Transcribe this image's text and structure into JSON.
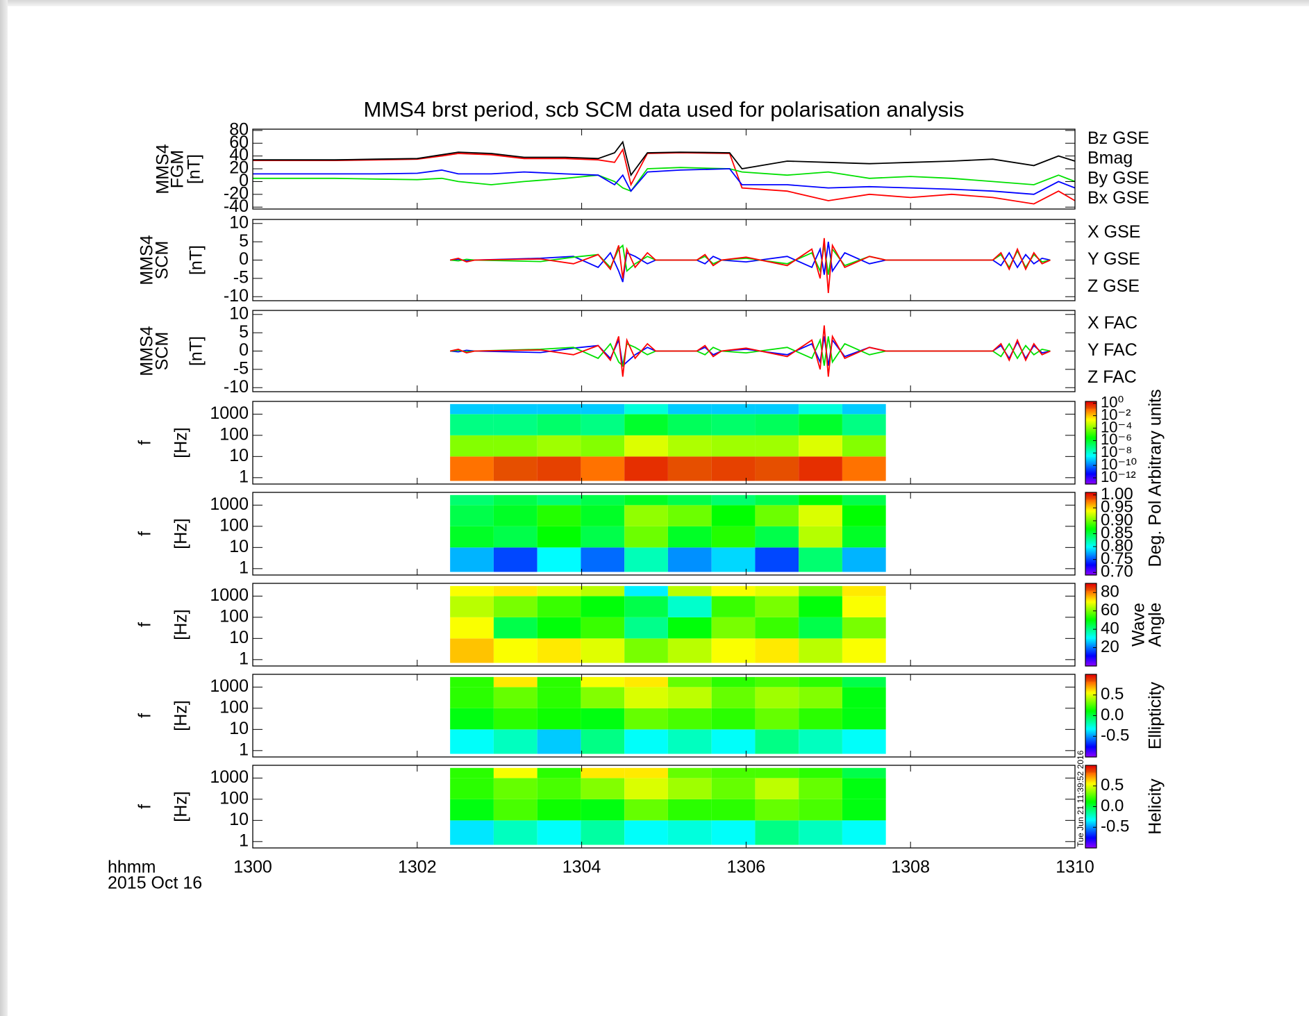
{
  "title": "MMS4 brst period, scb SCM data used for polarisation analysis",
  "x_label": "hhmm",
  "date": "2015 Oct 16",
  "timestamp": "Tue Jun 21 11:39:52 2016",
  "xlim": [
    1300,
    1310
  ],
  "xticks": [
    1300,
    1302,
    1304,
    1306,
    1308,
    1310
  ],
  "chart_data": [
    {
      "type": "line",
      "y_label": [
        "MMS4",
        "FGM",
        "[nT]"
      ],
      "ylim": [
        -43,
        82
      ],
      "yticks": [
        -40,
        -20,
        0,
        20,
        40,
        60,
        80
      ],
      "x": [
        1300,
        1300.5,
        1301,
        1301.5,
        1302,
        1302.3,
        1302.5,
        1302.9,
        1303.3,
        1303.8,
        1304.2,
        1304.4,
        1304.5,
        1304.6,
        1304.8,
        1305.2,
        1305.8,
        1305.95,
        1306.5,
        1307,
        1307.5,
        1308,
        1308.5,
        1309,
        1309.5,
        1309.8,
        1310
      ],
      "series": [
        {
          "name": "Bz GSE",
          "color": "#ff0000",
          "values": [
            33,
            33,
            33,
            34,
            35,
            40,
            44,
            42,
            36,
            36,
            34,
            30,
            50,
            -5,
            44,
            45,
            44,
            -10,
            -15,
            -30,
            -20,
            -25,
            -20,
            -25,
            -35,
            -15,
            -30
          ]
        },
        {
          "name": "Bmag",
          "color": "#000000",
          "values": [
            34,
            34,
            34,
            35,
            36,
            42,
            46,
            44,
            38,
            38,
            36,
            45,
            62,
            10,
            45,
            46,
            45,
            20,
            32,
            30,
            28,
            30,
            32,
            35,
            25,
            40,
            32
          ]
        },
        {
          "name": "By GSE",
          "color": "#00e000",
          "values": [
            5,
            5,
            5,
            4,
            3,
            5,
            0,
            -5,
            0,
            5,
            10,
            0,
            -10,
            -15,
            20,
            22,
            20,
            15,
            10,
            15,
            5,
            8,
            5,
            0,
            -5,
            10,
            0
          ]
        },
        {
          "name": "Bx GSE",
          "color": "#0000ff",
          "values": [
            12,
            12,
            12,
            12,
            13,
            18,
            12,
            12,
            15,
            12,
            10,
            -5,
            10,
            -15,
            15,
            18,
            20,
            -5,
            -5,
            -10,
            -8,
            -10,
            -12,
            -15,
            -20,
            0,
            -10
          ]
        }
      ]
    },
    {
      "type": "line",
      "y_label": [
        "MMS4",
        "SCM",
        "[nT]"
      ],
      "ylim": [
        -11.1,
        11.1
      ],
      "yticks": [
        -10,
        -5,
        0,
        5,
        10
      ],
      "x": [
        1302.4,
        1302.5,
        1302.6,
        1302.7,
        1303.5,
        1303.9,
        1304.2,
        1304.35,
        1304.45,
        1304.5,
        1304.55,
        1304.65,
        1304.8,
        1304.9,
        1305.4,
        1305.5,
        1305.6,
        1305.7,
        1306,
        1306.5,
        1306.8,
        1306.9,
        1306.95,
        1307,
        1307.05,
        1307.2,
        1307.5,
        1307.7,
        1308,
        1308.5,
        1309,
        1309.1,
        1309.2,
        1309.3,
        1309.4,
        1309.5,
        1309.6,
        1309.7
      ],
      "series": [
        {
          "name": "X GSE",
          "color": "#0000ff",
          "values": [
            0,
            0.2,
            -0.2,
            0,
            0.5,
            1,
            -2,
            2,
            -3,
            -6,
            2,
            1,
            -1,
            0,
            0,
            -1,
            1,
            0,
            -0.5,
            1,
            -2,
            3,
            -4,
            5,
            -3,
            2,
            -1,
            0,
            0,
            0,
            0,
            -1.5,
            2,
            -2,
            1.5,
            -1,
            0.5,
            0
          ]
        },
        {
          "name": "Y GSE",
          "color": "#00e000",
          "values": [
            0,
            -0.2,
            0.2,
            0,
            -0.4,
            0.8,
            1.5,
            -2,
            3,
            4,
            -3,
            -1,
            1,
            0,
            0,
            1,
            -1,
            0,
            0.5,
            -1,
            2,
            -3,
            4,
            -4,
            3,
            -1.5,
            1,
            0,
            0,
            0,
            0,
            1.5,
            -2,
            2.5,
            -2,
            1.5,
            -0.5,
            0
          ]
        },
        {
          "name": "Z GSE",
          "color": "#ff0000",
          "values": [
            0,
            0.5,
            -0.5,
            0,
            0.3,
            -1,
            1.5,
            -2.5,
            4,
            -5,
            3,
            -2,
            2,
            0,
            0,
            1.5,
            -1.5,
            0,
            0.8,
            -1.5,
            3,
            -5,
            6,
            -9,
            4,
            -2,
            1,
            0,
            0,
            0,
            0,
            2,
            -2.5,
            3,
            -2.5,
            2,
            -1,
            0
          ]
        }
      ]
    },
    {
      "type": "line",
      "y_label": [
        "MMS4",
        "SCM",
        "[nT]"
      ],
      "ylim": [
        -11.1,
        11.1
      ],
      "yticks": [
        -10,
        -5,
        0,
        5,
        10
      ],
      "x": [
        1302.4,
        1302.5,
        1302.6,
        1302.7,
        1303.5,
        1303.9,
        1304.2,
        1304.35,
        1304.45,
        1304.5,
        1304.55,
        1304.65,
        1304.8,
        1304.9,
        1305.4,
        1305.5,
        1305.6,
        1305.7,
        1306,
        1306.5,
        1306.8,
        1306.9,
        1306.95,
        1307,
        1307.05,
        1307.2,
        1307.5,
        1307.7,
        1308,
        1308.5,
        1309,
        1309.1,
        1309.2,
        1309.3,
        1309.4,
        1309.5,
        1309.6,
        1309.7
      ],
      "series": [
        {
          "name": "X FAC",
          "color": "#0000ff",
          "values": [
            0,
            -0.2,
            0.2,
            0,
            -0.4,
            0.8,
            1.5,
            -2,
            3,
            -4,
            -3,
            -1,
            1,
            0,
            0,
            1,
            -1,
            0,
            0.5,
            -1,
            2,
            -3,
            4,
            -4,
            3,
            -1.5,
            1,
            0,
            0,
            0,
            0,
            1.5,
            -2,
            2.5,
            -2,
            1.5,
            -0.5,
            0
          ]
        },
        {
          "name": "Y FAC",
          "color": "#00e000",
          "values": [
            0,
            0.2,
            -0.2,
            0,
            0.5,
            1,
            -2,
            2,
            -3,
            -4,
            2,
            1,
            -1,
            0,
            0,
            -1,
            1,
            0,
            -0.5,
            1,
            -2,
            3,
            -4,
            4,
            -3,
            2,
            -1,
            0,
            0,
            0,
            0,
            -1.5,
            2,
            -2,
            1.5,
            -1,
            0.5,
            0
          ]
        },
        {
          "name": "Z FAC",
          "color": "#ff0000",
          "values": [
            0,
            0.5,
            -0.5,
            0,
            0.3,
            -1,
            1.5,
            -2.5,
            4,
            -7,
            3,
            -2,
            2,
            0,
            0,
            1.5,
            -1.5,
            0,
            0.8,
            -1.5,
            3,
            -5,
            7,
            -7,
            4,
            -2,
            1,
            0,
            0,
            0,
            0,
            2,
            -2.5,
            3,
            -2.5,
            2,
            -1,
            0
          ]
        }
      ]
    },
    {
      "type": "heatmap",
      "y_label": [
        "f",
        "[Hz]"
      ],
      "log_y": true,
      "ylim": [
        0.5,
        4000
      ],
      "yticks": [
        1,
        10,
        100,
        1000
      ],
      "x_edges": [
        1302.4,
        1302.93,
        1303.46,
        1303.99,
        1304.52,
        1305.05,
        1305.58,
        1306.11,
        1306.64,
        1307.17,
        1307.7
      ],
      "y_edges": [
        0.7,
        10,
        100,
        1000,
        3000
      ],
      "z": [
        [
          0.1,
          0.2,
          0.3,
          0.1,
          0.5,
          0.2,
          0.3,
          0.2,
          0.5,
          0.1
        ],
        [
          0.0001,
          0.0001,
          0.0002,
          0.0001,
          0.001,
          0.0003,
          0.0002,
          0.0002,
          0.001,
          0.0001
        ],
        [
          1e-07,
          1e-07,
          2e-07,
          1e-07,
          1e-06,
          3e-07,
          2e-07,
          3e-07,
          1e-06,
          1e-07
        ],
        [
          1e-09,
          1e-09,
          1e-09,
          1e-09,
          1e-08,
          1e-09,
          1e-09,
          1e-09,
          1e-08,
          1e-09
        ]
      ],
      "zlim": [
        1e-13,
        2
      ],
      "z_log": true,
      "zticks": [
        {
          "value": 1e-12,
          "label": "10⁻¹²"
        },
        {
          "value": 1e-10,
          "label": "10⁻¹⁰"
        },
        {
          "value": 1e-08,
          "label": "10⁻⁸"
        },
        {
          "value": 1e-06,
          "label": "10⁻⁶"
        },
        {
          "value": 0.0001,
          "label": "10⁻⁴"
        },
        {
          "value": 0.01,
          "label": "10⁻²"
        },
        {
          "value": 1,
          "label": "10⁰"
        }
      ],
      "colorbar_label": [
        "Arbitrary units"
      ]
    },
    {
      "type": "heatmap",
      "y_label": [
        "f",
        "[Hz]"
      ],
      "log_y": true,
      "ylim": [
        0.5,
        4000
      ],
      "yticks": [
        1,
        10,
        100,
        1000
      ],
      "x_edges": [
        1302.4,
        1302.93,
        1303.46,
        1303.99,
        1304.52,
        1305.05,
        1305.58,
        1306.11,
        1306.64,
        1307.17,
        1307.7
      ],
      "y_edges": [
        0.7,
        10,
        100,
        1000,
        3000
      ],
      "z": [
        [
          0.78,
          0.75,
          0.8,
          0.76,
          0.82,
          0.77,
          0.79,
          0.75,
          0.84,
          0.78
        ],
        [
          0.86,
          0.85,
          0.87,
          0.85,
          0.9,
          0.86,
          0.88,
          0.85,
          0.92,
          0.86
        ],
        [
          0.85,
          0.86,
          0.88,
          0.86,
          0.91,
          0.9,
          0.87,
          0.9,
          0.93,
          0.87
        ],
        [
          0.84,
          0.85,
          0.84,
          0.85,
          0.86,
          0.85,
          0.84,
          0.85,
          0.87,
          0.85
        ]
      ],
      "zlim": [
        0.69,
        1.01
      ],
      "zticks": [
        {
          "value": 0.7,
          "label": "0.70"
        },
        0.75,
        {
          "value": 0.8,
          "label": "0.80"
        },
        0.85,
        {
          "value": 0.9,
          "label": "0.90"
        },
        0.95,
        {
          "value": 1,
          "label": "1.00"
        }
      ],
      "colorbar_label": [
        "Deg. Pol"
      ]
    },
    {
      "type": "heatmap",
      "y_label": [
        "f",
        "[Hz]"
      ],
      "log_y": true,
      "ylim": [
        0.5,
        4000
      ],
      "yticks": [
        1,
        10,
        100,
        1000
      ],
      "x_edges": [
        1302.4,
        1302.93,
        1303.46,
        1303.99,
        1304.52,
        1305.05,
        1305.58,
        1306.11,
        1306.64,
        1307.17,
        1307.7
      ],
      "y_edges": [
        0.7,
        10,
        100,
        1000,
        3000
      ],
      "z": [
        [
          75,
          70,
          72,
          68,
          60,
          65,
          70,
          72,
          65,
          70
        ],
        [
          70,
          45,
          50,
          55,
          40,
          50,
          60,
          55,
          45,
          60
        ],
        [
          65,
          60,
          55,
          50,
          45,
          35,
          55,
          60,
          50,
          70
        ],
        [
          70,
          72,
          68,
          65,
          30,
          65,
          70,
          68,
          60,
          72
        ]
      ],
      "zlim": [
        0,
        90
      ],
      "zticks": [
        20,
        40,
        60,
        80
      ],
      "colorbar_label": [
        "Wave",
        "Angle"
      ]
    },
    {
      "type": "heatmap",
      "y_label": [
        "f",
        "[Hz]"
      ],
      "log_y": true,
      "ylim": [
        0.5,
        4000
      ],
      "yticks": [
        1,
        10,
        100,
        1000
      ],
      "x_edges": [
        1302.4,
        1302.93,
        1303.46,
        1303.99,
        1304.52,
        1305.05,
        1305.58,
        1306.11,
        1306.64,
        1307.17,
        1307.7
      ],
      "y_edges": [
        0.7,
        10,
        100,
        1000,
        3000
      ],
      "z": [
        [
          -0.3,
          -0.2,
          -0.4,
          -0.1,
          -0.3,
          -0.2,
          -0.3,
          -0.1,
          -0.2,
          -0.3
        ],
        [
          0.1,
          0.2,
          0.15,
          0.1,
          0.3,
          0.25,
          0.2,
          0.3,
          0.2,
          0.1
        ],
        [
          0.2,
          0.3,
          0.2,
          0.35,
          0.5,
          0.45,
          0.3,
          0.4,
          0.35,
          0.1
        ],
        [
          0.2,
          0.6,
          0.2,
          0.55,
          0.6,
          0.3,
          0.2,
          0.25,
          0.2,
          0
        ]
      ],
      "zlim": [
        -1,
        1
      ],
      "zticks": [
        -0.5,
        {
          "value": 0,
          "label": "0.0"
        },
        0.5
      ],
      "colorbar_label": [
        "Ellipticity"
      ]
    },
    {
      "type": "heatmap",
      "y_label": [
        "f",
        "[Hz]"
      ],
      "log_y": true,
      "ylim": [
        0.5,
        4000
      ],
      "yticks": [
        1,
        10,
        100,
        1000
      ],
      "x_edges": [
        1302.4,
        1302.93,
        1303.46,
        1303.99,
        1304.52,
        1305.05,
        1305.58,
        1306.11,
        1306.64,
        1307.17,
        1307.7
      ],
      "y_edges": [
        0.7,
        10,
        100,
        1000,
        3000
      ],
      "z": [
        [
          -0.35,
          -0.2,
          -0.3,
          -0.15,
          -0.3,
          -0.25,
          -0.3,
          -0.1,
          -0.2,
          -0.3
        ],
        [
          0.1,
          0.25,
          0.15,
          0.1,
          0.3,
          0.2,
          0.2,
          0.3,
          0.25,
          0.1
        ],
        [
          0.2,
          0.3,
          0.25,
          0.35,
          0.5,
          0.4,
          0.3,
          0.45,
          0.3,
          0.1
        ],
        [
          0.2,
          0.55,
          0.2,
          0.6,
          0.6,
          0.3,
          0.25,
          0.25,
          0.2,
          0
        ]
      ],
      "zlim": [
        -1,
        1
      ],
      "zticks": [
        -0.5,
        {
          "value": 0,
          "label": "0.0"
        },
        0.5
      ],
      "colorbar_label": [
        "Helicity"
      ]
    }
  ]
}
